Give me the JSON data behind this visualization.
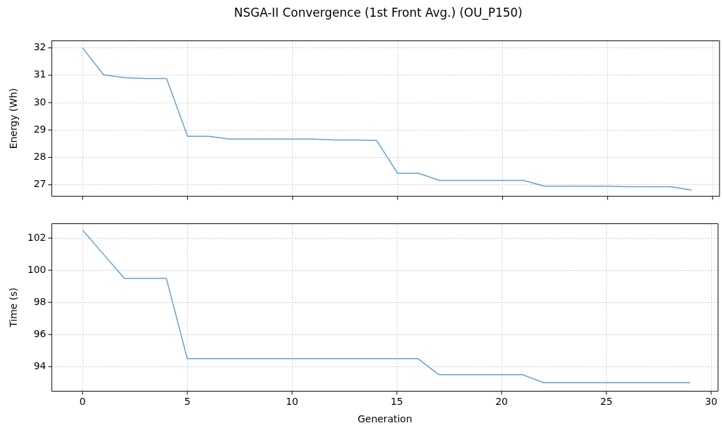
{
  "chart_data": [
    {
      "type": "line",
      "title": "NSGA-II Convergence (1st Front Avg.) (OU_P150)",
      "ylabel": "Energy (Wh)",
      "tick_labels": "y",
      "grid": true,
      "marker": "none",
      "line_style": "solid",
      "legend": false,
      "x": [
        0,
        1,
        2,
        3,
        4,
        5,
        6,
        7,
        8,
        9,
        10,
        11,
        12,
        13,
        14,
        15,
        16,
        17,
        18,
        19,
        20,
        21,
        22,
        23,
        24,
        25,
        26,
        27,
        28,
        29
      ],
      "series": [
        {
          "color": "#64a0cf",
          "values": [
            32.0,
            31.02,
            30.91,
            30.88,
            30.88,
            28.77,
            28.77,
            28.67,
            28.67,
            28.67,
            28.67,
            28.67,
            28.64,
            28.64,
            28.62,
            27.42,
            27.42,
            27.16,
            27.16,
            27.16,
            27.16,
            27.16,
            26.95,
            26.95,
            26.95,
            26.95,
            26.93,
            26.93,
            26.93,
            26.81
          ]
        }
      ],
      "xlim": [
        -1.47,
        30.33
      ],
      "xticks": [
        0,
        5,
        10,
        15,
        20,
        25,
        30
      ],
      "ylim": [
        26.58,
        32.26
      ],
      "yticks": [
        27,
        28,
        29,
        30,
        31,
        32
      ]
    },
    {
      "type": "line",
      "xlabel": "Generation",
      "ylabel": "Time (s)",
      "grid": true,
      "marker": "none",
      "line_style": "solid",
      "legend": false,
      "x": [
        0,
        1,
        2,
        3,
        4,
        5,
        6,
        7,
        8,
        9,
        10,
        11,
        12,
        13,
        14,
        15,
        16,
        17,
        18,
        19,
        20,
        21,
        22,
        23,
        24,
        25,
        26,
        27,
        28,
        29
      ],
      "series": [
        {
          "color": "#64a0cf",
          "values": [
            102.5,
            101.0,
            99.5,
            99.5,
            99.5,
            94.5,
            94.5,
            94.5,
            94.5,
            94.5,
            94.5,
            94.5,
            94.5,
            94.5,
            94.5,
            94.5,
            94.5,
            93.5,
            93.5,
            93.5,
            93.5,
            93.5,
            93.0,
            93.0,
            93.0,
            93.0,
            93.0,
            93.0,
            93.0,
            93.0
          ]
        }
      ],
      "xlim": [
        -1.47,
        30.33
      ],
      "xticks": [
        0,
        5,
        10,
        15,
        20,
        25,
        30
      ],
      "ylim": [
        92.47,
        102.9
      ],
      "yticks": [
        94,
        96,
        98,
        100,
        102
      ]
    }
  ]
}
